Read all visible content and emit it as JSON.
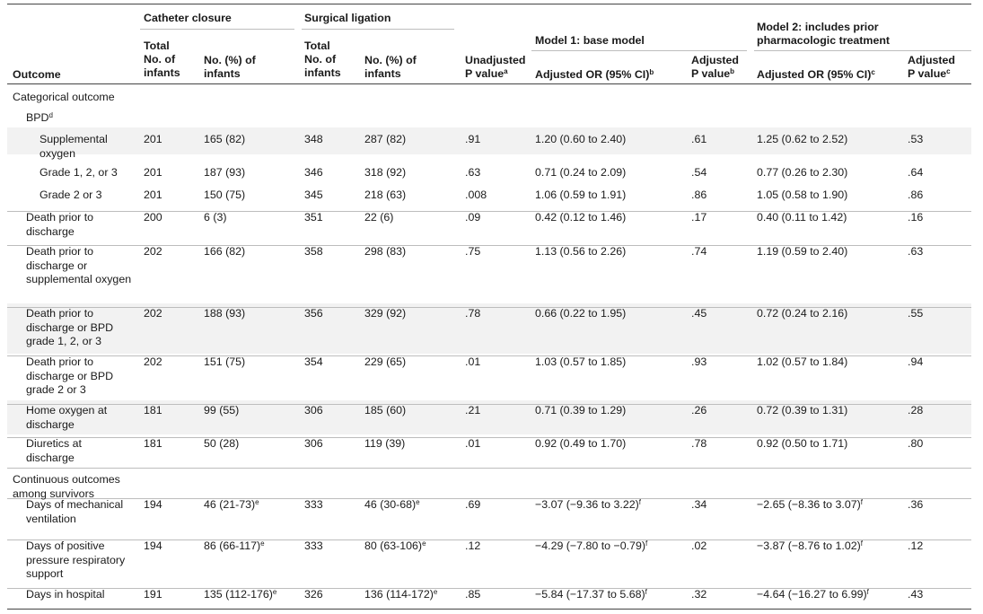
{
  "header": {
    "outcome": "Outcome",
    "catheter_closure": "Catheter closure",
    "surgical_ligation": "Surgical ligation",
    "total_infants": "Total No. of infants",
    "no_pct_infants": "No. (%) of infants",
    "unadjusted_p": "Unadjusted P value",
    "unadjusted_p_sup": "a",
    "model1": "Model 1: base model",
    "model2": "Model 2: includes prior pharmacologic treatment",
    "adjusted_or": "Adjusted OR (95% CI)",
    "adjusted_or_sup1": "b",
    "adjusted_or_sup2": "c",
    "adjusted_p": "Adjusted P value",
    "adjusted_p_sup1": "b",
    "adjusted_p_sup2": "c"
  },
  "sections": {
    "categorical": "Categorical outcome",
    "bpd": "BPD",
    "bpd_sup": "d",
    "continuous": "Continuous outcomes among survivors"
  },
  "rows": [
    {
      "label": "Supplemental oxygen",
      "cc_total": "201",
      "cc_n": "165 (82)",
      "sl_total": "348",
      "sl_n": "287 (82)",
      "p": ".91",
      "m1_or": "1.20 (0.60 to 2.40)",
      "m1_p": ".61",
      "m2_or": "1.25 (0.62 to 2.52)",
      "m2_p": ".53"
    },
    {
      "label": "Grade 1, 2, or 3",
      "cc_total": "201",
      "cc_n": "187 (93)",
      "sl_total": "346",
      "sl_n": "318 (92)",
      "p": ".63",
      "m1_or": "0.71 (0.24 to 2.09)",
      "m1_p": ".54",
      "m2_or": "0.77 (0.26 to 2.30)",
      "m2_p": ".64"
    },
    {
      "label": "Grade 2 or 3",
      "cc_total": "201",
      "cc_n": "150 (75)",
      "sl_total": "345",
      "sl_n": "218 (63)",
      "p": ".008",
      "m1_or": "1.06 (0.59 to 1.91)",
      "m1_p": ".86",
      "m2_or": "1.05 (0.58 to 1.90)",
      "m2_p": ".86"
    },
    {
      "label": "Death prior to discharge",
      "cc_total": "200",
      "cc_n": "6 (3)",
      "sl_total": "351",
      "sl_n": "22 (6)",
      "p": ".09",
      "m1_or": "0.42 (0.12 to 1.46)",
      "m1_p": ".17",
      "m2_or": "0.40 (0.11 to 1.42)",
      "m2_p": ".16"
    },
    {
      "label": "Death prior to discharge or supplemental oxygen",
      "cc_total": "202",
      "cc_n": "166 (82)",
      "sl_total": "358",
      "sl_n": "298 (83)",
      "p": ".75",
      "m1_or": "1.13 (0.56 to 2.26)",
      "m1_p": ".74",
      "m2_or": "1.19 (0.59 to 2.40)",
      "m2_p": ".63"
    },
    {
      "label": "Death prior to discharge or BPD grade 1, 2, or 3",
      "cc_total": "202",
      "cc_n": "188 (93)",
      "sl_total": "356",
      "sl_n": "329 (92)",
      "p": ".78",
      "m1_or": "0.66 (0.22 to 1.95)",
      "m1_p": ".45",
      "m2_or": "0.72 (0.24 to 2.16)",
      "m2_p": ".55"
    },
    {
      "label": "Death prior to discharge or BPD grade 2 or 3",
      "cc_total": "202",
      "cc_n": "151 (75)",
      "sl_total": "354",
      "sl_n": "229 (65)",
      "p": ".01",
      "m1_or": "1.03 (0.57 to 1.85)",
      "m1_p": ".93",
      "m2_or": "1.02 (0.57 to 1.84)",
      "m2_p": ".94"
    },
    {
      "label": "Home oxygen at discharge",
      "cc_total": "181",
      "cc_n": "99 (55)",
      "sl_total": "306",
      "sl_n": "185 (60)",
      "p": ".21",
      "m1_or": "0.71 (0.39 to 1.29)",
      "m1_p": ".26",
      "m2_or": "0.72 (0.39 to 1.31)",
      "m2_p": ".28"
    },
    {
      "label": "Diuretics at discharge",
      "cc_total": "181",
      "cc_n": "50 (28)",
      "sl_total": "306",
      "sl_n": "119 (39)",
      "p": ".01",
      "m1_or": "0.92 (0.49 to 1.70)",
      "m1_p": ".78",
      "m2_or": "0.92 (0.50 to 1.71)",
      "m2_p": ".80"
    },
    {
      "label": "Days of mechanical ventilation",
      "cc_total": "194",
      "cc_n": "46 (21-73)",
      "cc_sup": "e",
      "sl_total": "333",
      "sl_n": "46 (30-68)",
      "sl_sup": "e",
      "p": ".69",
      "m1_or": "−3.07 (−9.36 to 3.22)",
      "m1_sup": "f",
      "m1_p": ".34",
      "m2_or": "−2.65 (−8.36 to 3.07)",
      "m2_sup": "f",
      "m2_p": ".36"
    },
    {
      "label": "Days of positive pressure respiratory support",
      "cc_total": "194",
      "cc_n": "86 (66-117)",
      "cc_sup": "e",
      "sl_total": "333",
      "sl_n": "80 (63-106)",
      "sl_sup": "e",
      "p": ".12",
      "m1_or": "−4.29 (−7.80 to −0.79)",
      "m1_sup": "f",
      "m1_p": ".02",
      "m2_or": "−3.87 (−8.76 to 1.02)",
      "m2_sup": "f",
      "m2_p": ".12"
    },
    {
      "label": "Days in hospital",
      "cc_total": "191",
      "cc_n": "135 (112-176)",
      "cc_sup": "e",
      "sl_total": "326",
      "sl_n": "136 (114-172)",
      "sl_sup": "e",
      "p": ".85",
      "m1_or": "−5.84 (−17.37 to 5.68)",
      "m1_sup": "f",
      "m1_p": ".32",
      "m2_or": "−4.64 (−16.27 to 6.99)",
      "m2_sup": "f",
      "m2_p": ".43"
    }
  ]
}
